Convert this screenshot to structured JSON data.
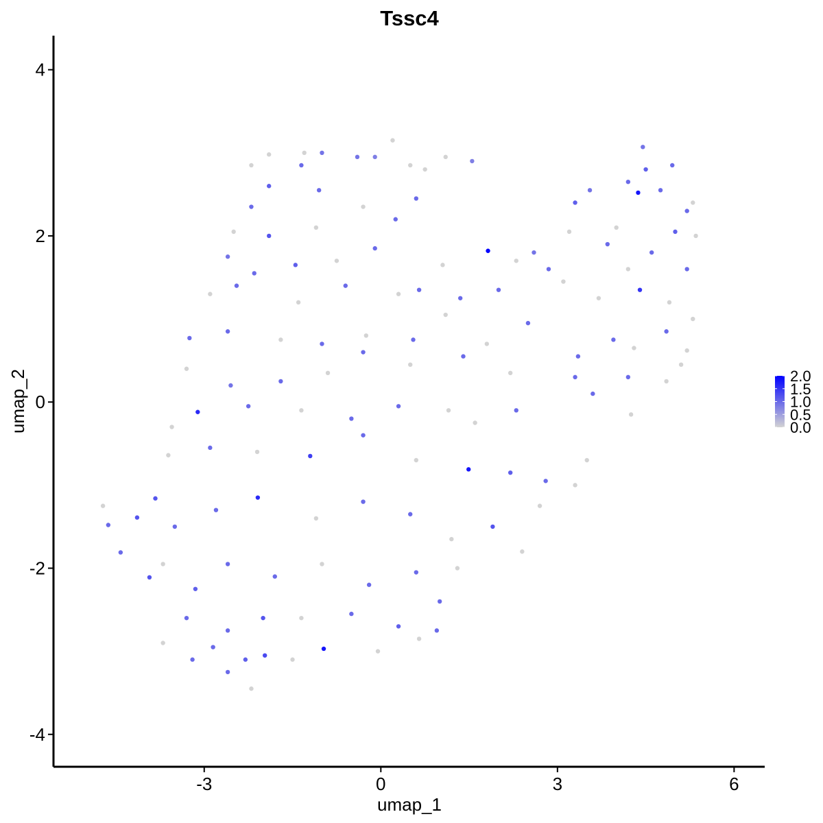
{
  "chart_data": {
    "type": "scatter",
    "title": "Tssc4",
    "x_label": "umap_1",
    "y_label": "umap_2",
    "xlim": [
      -5.56,
      6.52
    ],
    "ylim": [
      -4.39,
      4.41
    ],
    "xticks": [
      -3,
      0,
      3,
      6
    ],
    "yticks": [
      -4,
      -2,
      0,
      2,
      4
    ],
    "color_scale": [
      "#d3d3d3",
      "#0000ff"
    ],
    "color_lim": [
      0,
      2
    ],
    "color_ticks": [
      {
        "value": 2,
        "label": "2.0"
      },
      {
        "value": 1.5,
        "label": "1.5"
      },
      {
        "value": 1,
        "label": "1.0"
      },
      {
        "value": 0.5,
        "label": "0.5"
      },
      {
        "value": 0,
        "label": "0.0"
      }
    ],
    "x": [
      -1.9,
      -1.3,
      -1.0,
      -0.4,
      0.2,
      0.5,
      1.1,
      -2.2,
      -1.35,
      -0.1,
      1.55,
      0.75,
      -1.9,
      -2.2,
      -1.05,
      -0.3,
      0.6,
      0.25,
      -1.9,
      -1.1,
      -2.5,
      -2.6,
      -2.15,
      -1.45,
      -0.75,
      -0.1,
      0.65,
      1.05,
      -2.9,
      -2.45,
      -1.4,
      -0.6,
      0.3,
      1.35,
      2.0,
      2.3,
      2.6,
      3.2,
      3.3,
      3.55,
      4.0,
      4.2,
      4.45,
      4.5,
      4.75,
      4.95,
      5.2,
      5.3,
      5.0,
      5.35,
      4.6,
      4.2,
      3.85,
      3.1,
      2.85,
      3.7,
      4.4,
      4.9,
      5.2,
      5.3,
      5.2,
      4.85,
      4.3,
      3.95,
      3.35,
      2.5,
      1.8,
      1.1,
      0.55,
      -0.25,
      -1.0,
      -1.7,
      -2.6,
      -3.25,
      -3.3,
      -2.55,
      -1.7,
      -0.9,
      -0.3,
      0.5,
      1.4,
      2.2,
      3.3,
      4.2,
      5.1,
      4.85,
      4.25,
      3.6,
      2.3,
      1.6,
      1.15,
      0.3,
      -0.5,
      -1.35,
      -2.25,
      -3.11,
      -3.55,
      -2.9,
      -2.1,
      -1.2,
      -0.3,
      0.6,
      1.49,
      2.2,
      2.8,
      3.5,
      3.3,
      2.7,
      1.9,
      1.2,
      0.5,
      -0.3,
      -1.1,
      -2.09,
      -2.8,
      -3.5,
      -4.14,
      -4.72,
      -4.63,
      -4.42,
      -3.83,
      -3.93,
      -3.61,
      -3.7,
      -3.15,
      -2.6,
      -1.8,
      -1.0,
      -0.2,
      0.6,
      1.3,
      2.4,
      1.0,
      0.3,
      -0.5,
      -1.35,
      -2.0,
      -2.6,
      -3.3,
      -3.7,
      -3.2,
      -2.6,
      -2.2,
      -1.5,
      -0.97,
      -0.05,
      0.65,
      0.95,
      -2.3,
      -2.85,
      -1.97,
      1.82,
      4.37
    ],
    "y": [
      2.98,
      3.0,
      3.0,
      2.95,
      3.15,
      2.85,
      2.95,
      2.85,
      2.85,
      2.95,
      2.9,
      2.8,
      2.6,
      2.35,
      2.55,
      2.35,
      2.45,
      2.2,
      2.0,
      2.1,
      2.05,
      1.75,
      1.55,
      1.65,
      1.7,
      1.85,
      1.35,
      1.65,
      1.3,
      1.4,
      1.2,
      1.4,
      1.3,
      1.25,
      1.35,
      1.7,
      1.8,
      2.05,
      2.4,
      2.55,
      2.1,
      2.65,
      3.07,
      2.8,
      2.55,
      2.85,
      2.3,
      2.4,
      2.05,
      2.0,
      1.8,
      1.6,
      1.9,
      1.45,
      1.6,
      1.25,
      1.35,
      1.2,
      1.6,
      1.0,
      0.62,
      0.85,
      0.65,
      0.75,
      0.55,
      0.95,
      0.7,
      1.05,
      0.75,
      0.8,
      0.7,
      0.75,
      0.85,
      0.77,
      0.4,
      0.2,
      0.25,
      0.35,
      0.6,
      0.45,
      0.55,
      0.35,
      0.3,
      0.3,
      0.45,
      0.25,
      -0.15,
      0.1,
      -0.1,
      -0.25,
      -0.1,
      -0.05,
      -0.2,
      -0.1,
      -0.05,
      -0.12,
      -0.3,
      -0.55,
      -0.6,
      -0.65,
      -0.4,
      -0.7,
      -0.81,
      -0.85,
      -0.95,
      -0.7,
      -1.0,
      -1.25,
      -1.5,
      -1.65,
      -1.35,
      -1.2,
      -1.4,
      -1.15,
      -1.3,
      -1.5,
      -1.39,
      -1.25,
      -1.48,
      -1.81,
      -1.16,
      -2.11,
      -0.64,
      -1.95,
      -2.25,
      -1.95,
      -2.1,
      -1.95,
      -2.2,
      -2.05,
      -2.0,
      -1.8,
      -2.4,
      -2.7,
      -2.55,
      -2.6,
      -2.6,
      -2.75,
      -2.6,
      -2.9,
      -3.1,
      -3.25,
      -3.45,
      -3.1,
      -2.97,
      -3.0,
      -2.85,
      -2.75,
      -3.1,
      -2.95,
      -3.05,
      1.82,
      2.52
    ],
    "values": [
      0,
      0,
      0.9,
      0.9,
      0,
      0,
      0,
      0,
      1.0,
      0.8,
      0.8,
      0,
      1.1,
      1.0,
      1.0,
      0,
      1.0,
      1.0,
      1.2,
      0,
      0,
      0.9,
      1.0,
      1.1,
      0,
      1.0,
      1.0,
      0,
      0,
      1.0,
      0,
      1.0,
      0,
      1.0,
      1.0,
      0,
      0.9,
      0,
      1.1,
      0.9,
      0,
      1.0,
      0.9,
      1.1,
      1.0,
      1.0,
      1.0,
      0,
      1.1,
      0,
      1.0,
      0,
      1.0,
      0,
      1.0,
      0,
      1.5,
      0,
      1.0,
      0,
      0,
      1.0,
      0,
      1.0,
      1.0,
      1.0,
      0,
      0,
      1.0,
      0,
      1.0,
      0,
      1.0,
      1.0,
      0,
      0.9,
      1.0,
      0,
      1.0,
      0,
      1.0,
      0,
      1.0,
      1.0,
      0,
      0,
      0,
      1.0,
      1.0,
      0,
      0,
      1.0,
      1.0,
      0,
      1.0,
      1.6,
      0,
      1.0,
      0,
      1.4,
      1.0,
      0,
      1.8,
      1.1,
      1.0,
      0,
      0,
      0,
      1.2,
      0,
      1.0,
      1.0,
      0,
      1.6,
      1.0,
      1.0,
      1.2,
      0,
      1.0,
      1.0,
      1.2,
      1.2,
      0,
      0,
      1.1,
      1.0,
      1.0,
      0,
      1.0,
      1.0,
      0,
      0,
      1.0,
      1.1,
      1.0,
      0,
      1.2,
      1.0,
      1.0,
      0,
      1.0,
      1.0,
      0,
      0,
      1.8,
      0,
      0,
      1.0,
      1.1,
      1.0,
      1.3,
      2.0,
      1.8
    ]
  }
}
